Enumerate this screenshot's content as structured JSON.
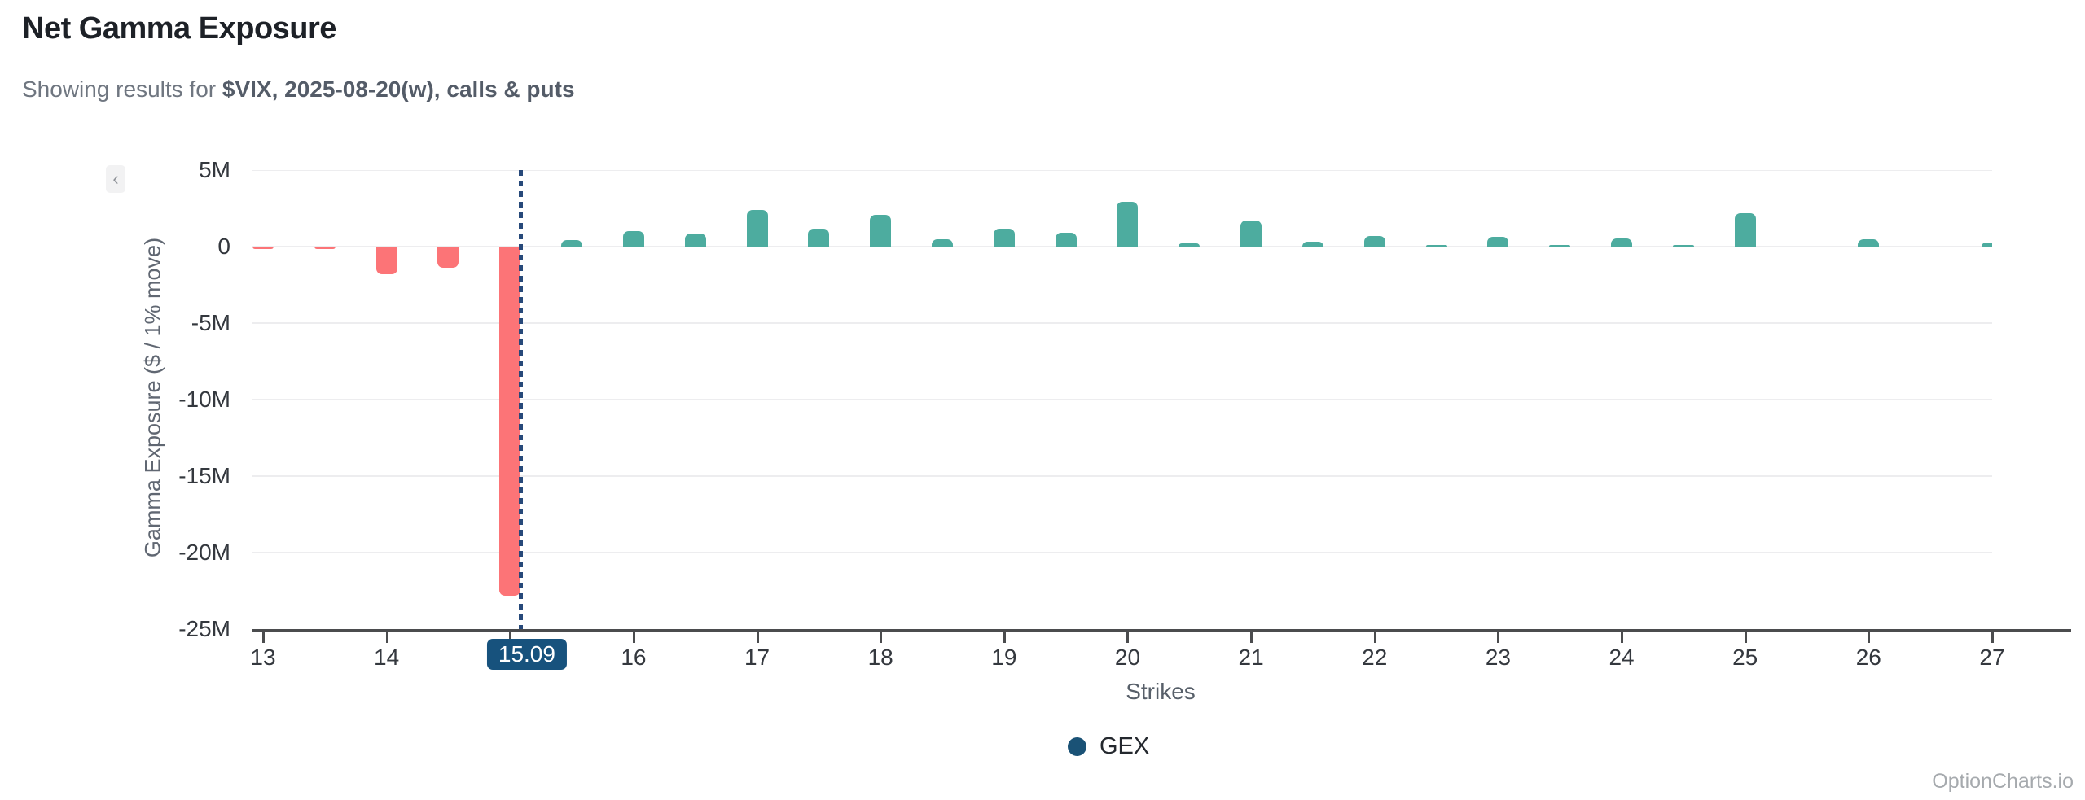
{
  "header": {
    "title": "Net Gamma Exposure",
    "subtitle_prefix": "Showing results for ",
    "subtitle_bold": "$VIX, 2025-08-20(w), calls & puts"
  },
  "controls": {
    "collapse_glyph": "‹"
  },
  "chart_data": {
    "type": "bar",
    "title": "Net Gamma Exposure",
    "xlabel": "Strikes",
    "ylabel": "Gamma Exposure ($ / 1% move)",
    "value_unit": "M ($ millions)",
    "ylim_millions": [
      -25,
      5
    ],
    "ytick_labels": [
      "5M",
      "0",
      "-5M",
      "-10M",
      "-15M",
      "-20M",
      "-25M"
    ],
    "ytick_values_millions": [
      5,
      0,
      -5,
      -10,
      -15,
      -20,
      -25
    ],
    "xtick_labels": [
      "13",
      "14",
      "16",
      "17",
      "18",
      "19",
      "20",
      "21",
      "22",
      "23",
      "24",
      "25",
      "26",
      "27"
    ],
    "xtick_values": [
      13,
      14,
      16,
      17,
      18,
      19,
      20,
      21,
      22,
      23,
      24,
      25,
      26,
      27
    ],
    "grid": true,
    "legend_position": "bottom",
    "legend": [
      {
        "label": "GEX",
        "color": "#1a5276"
      }
    ],
    "spot": {
      "value": 15.09,
      "label": "15.09"
    },
    "series": [
      {
        "name": "GEX",
        "x": [
          13,
          13.5,
          14,
          14.5,
          15,
          15.5,
          16,
          16.5,
          17,
          17.5,
          18,
          18.5,
          19,
          19.5,
          20,
          20.5,
          21,
          21.5,
          22,
          22.5,
          23,
          23.5,
          24,
          24.5,
          25,
          25.5,
          26,
          26.5,
          27
        ],
        "values_millions": [
          -0.18,
          -0.18,
          -1.8,
          -1.4,
          -22.8,
          0.4,
          1.0,
          0.85,
          2.4,
          1.15,
          2.05,
          0.5,
          1.15,
          0.9,
          2.9,
          0.22,
          1.7,
          0.3,
          0.7,
          0.12,
          0.62,
          0.1,
          0.52,
          0.12,
          2.2,
          0,
          0.5,
          0,
          0.27
        ]
      }
    ],
    "colors": {
      "positive_bar": "#4dac9f",
      "negative_bar": "#fc7477",
      "spot_line": "#27497a",
      "spot_pill_bg": "#17527d",
      "gridline": "#ededef",
      "axis": "#4b4c4e"
    }
  },
  "watermark": "OptionCharts.io"
}
